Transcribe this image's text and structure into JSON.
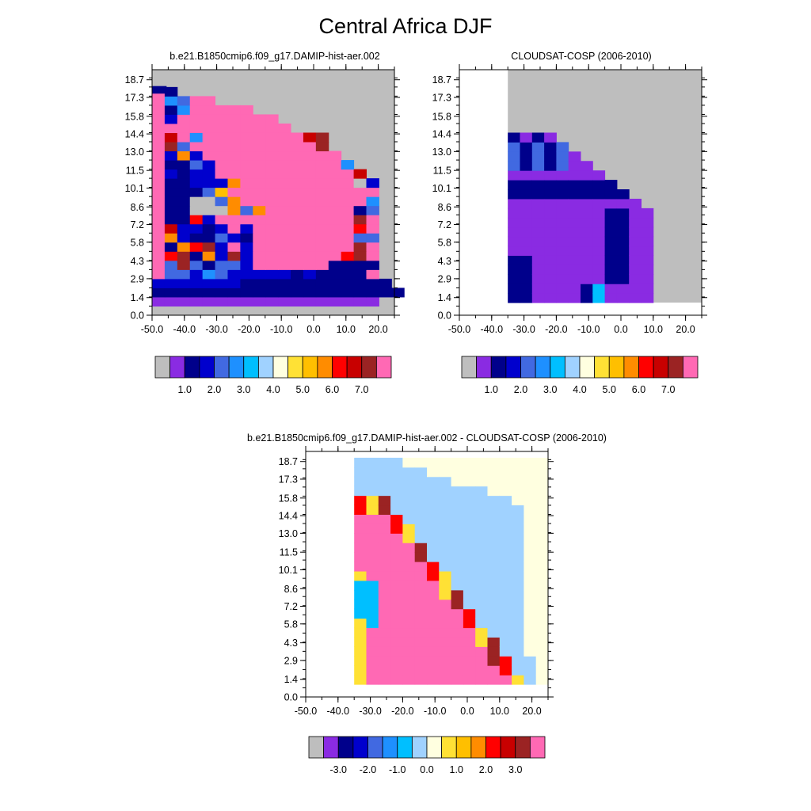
{
  "title": "Central Africa DJF",
  "colors": {
    "bar14": [
      "#bebebe",
      "#8a2be2",
      "#00008b",
      "#0000cd",
      "#4169e1",
      "#1e90ff",
      "#00bfff",
      "#a0d2ff",
      "#ffffe0",
      "#ffe135",
      "#ffbf00",
      "#ff8c00",
      "#ff0000",
      "#c80000",
      "#9b2323",
      "#ff69b4"
    ],
    "missing": "#bebebe",
    "white": "#ffffff"
  },
  "chart_data": [
    {
      "type": "heatmap",
      "title": "b.e21.B1850cmip6.f09_g17.DAMIP-hist-aer.002",
      "xticks": [
        "-50.0",
        "-40.0",
        "-30.0",
        "-20.0",
        "-10.0",
        "0.0",
        "10.0",
        "20.0"
      ],
      "yticks": [
        "0.0",
        "1.4",
        "2.9",
        "4.3",
        "5.8",
        "7.2",
        "8.6",
        "10.1",
        "11.5",
        "13.0",
        "14.4",
        "15.8",
        "17.3",
        "18.7"
      ],
      "xlim": [
        -50,
        25
      ],
      "ylim": [
        0,
        19.5
      ],
      "colorbar_labels": [
        "1.0",
        "2.0",
        "3.0",
        "4.0",
        "5.0",
        "6.0",
        "7.0"
      ],
      "colorbar_colors": 16,
      "background": "gray",
      "grid": [
        "000000000000000000",
        "111111111111111111",
        "22222222222222222222",
        "3333333222222222222",
        "F4435433333232222F",
        "F4E42443FFFFFF2222",
        "FCE2B3E3FFFFFFFCEF",
        "F2BCE3F3FFFFFFFFEF",
        "FB322432FFFFFFFF44",
        "FD3323F3FFFFFFFFCF",
        "F22C3FFFFFFFFFFFEF",
        "F22000B4BFFFFFFF24",
        "F22004BFFFFFFFFFF5",
        "F2224AFFFFFFFFFFFF",
        "F22333BFFFFFFFFF03",
        "F3233FFFFFFFFFFFD",
        "F2243FFFFFFFFFF5",
        "F3B3FFFFFFFFFFF",
        "FE4FFFFFFFFFFE",
        "FDF5FFFFFFFFDE",
        "FFFFFFFFFFF",
        "F3FFFFFFFF",
        "F25FFFFF",
        "F54FF",
        "F2"
      ]
    },
    {
      "type": "heatmap",
      "title": "CLOUDSAT-COSP (2006-2010)",
      "xticks": [
        "-50.0",
        "-40.0",
        "-30.0",
        "-20.0",
        "-10.0",
        "0.0",
        "10.0",
        "20.0"
      ],
      "yticks": [
        "0.0",
        "1.4",
        "2.9",
        "4.3",
        "5.8",
        "7.2",
        "8.6",
        "10.1",
        "11.5",
        "13.0",
        "14.4",
        "15.8",
        "17.3",
        "18.7"
      ],
      "xlim": [
        -50,
        25
      ],
      "ylim": [
        0,
        19.5
      ],
      "colorbar_labels": [
        "1.0",
        "2.0",
        "3.0",
        "4.0",
        "5.0",
        "6.0",
        "7.0"
      ],
      "colorbar_colors": 16,
      "background": "gray",
      "grid": []
    },
    {
      "type": "heatmap",
      "title": "b.e21.B1850cmip6.f09_g17.DAMIP-hist-aer.002 - CLOUDSAT-COSP (2006-2010)",
      "xticks": [
        "-50.0",
        "-40.0",
        "-30.0",
        "-20.0",
        "-10.0",
        "0.0",
        "10.0",
        "20.0"
      ],
      "yticks": [
        "0.0",
        "1.4",
        "2.9",
        "4.3",
        "5.8",
        "7.2",
        "8.6",
        "10.1",
        "11.5",
        "13.0",
        "14.4",
        "15.8",
        "17.3",
        "18.7"
      ],
      "xlim": [
        -50,
        25
      ],
      "ylim": [
        0,
        19.5
      ],
      "colorbar_labels": [
        "-3.0",
        "-2.0",
        "-1.0",
        "0.0",
        "1.0",
        "2.0",
        "3.0"
      ],
      "colorbar_colors": 16,
      "background": "white",
      "grid": []
    }
  ]
}
